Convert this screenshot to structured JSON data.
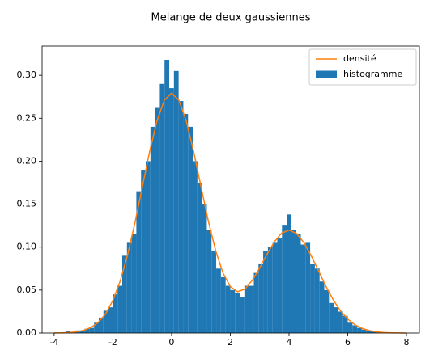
{
  "chart_data": {
    "type": "histogram",
    "title": "Melange de deux gaussiennes",
    "xlim": [
      -4.41,
      8.44
    ],
    "ylim": [
      0,
      0.334
    ],
    "xticks": [
      -4,
      -2,
      0,
      2,
      4,
      6,
      8
    ],
    "yticks": [
      {
        "value": 0,
        "label": "0.00"
      },
      {
        "value": 0.05,
        "label": "0.05"
      },
      {
        "value": 0.1,
        "label": "0.10"
      },
      {
        "value": 0.15,
        "label": "0.15"
      },
      {
        "value": 0.2,
        "label": "0.20"
      },
      {
        "value": 0.25,
        "label": "0.25"
      },
      {
        "value": 0.3,
        "label": "0.30"
      }
    ],
    "legend": "upper right",
    "series": [
      {
        "name": "densité",
        "type": "line",
        "color": "#ff7f0e",
        "x": [
          -4,
          -3.75,
          -3.5,
          -3.25,
          -3,
          -2.75,
          -2.5,
          -2.25,
          -2,
          -1.75,
          -1.5,
          -1.25,
          -1,
          -0.75,
          -0.5,
          -0.25,
          0,
          0.25,
          0.5,
          0.75,
          1,
          1.25,
          1.5,
          1.75,
          2,
          2.25,
          2.5,
          2.75,
          3,
          3.25,
          3.5,
          3.75,
          4,
          4.25,
          4.5,
          4.75,
          5,
          5.25,
          5.5,
          5.75,
          6,
          6.25,
          6.5,
          6.75,
          7,
          7.25,
          7.5,
          7.75,
          8
        ],
        "values": [
          0.0001,
          0.00025,
          0.0006,
          0.0014,
          0.0031,
          0.0064,
          0.0123,
          0.0222,
          0.0378,
          0.0604,
          0.0907,
          0.1278,
          0.1694,
          0.2108,
          0.2465,
          0.2707,
          0.2793,
          0.2708,
          0.2468,
          0.2114,
          0.1707,
          0.1305,
          0.096,
          0.0699,
          0.054,
          0.0481,
          0.0512,
          0.0613,
          0.0757,
          0.0917,
          0.1062,
          0.1163,
          0.1198,
          0.116,
          0.1056,
          0.0903,
          0.0726,
          0.0548,
          0.0389,
          0.0259,
          0.0162,
          0.0095,
          0.0053,
          0.0027,
          0.0013,
          0.0006,
          0.00026,
          0.0001,
          4e-05
        ]
      },
      {
        "name": "histogramme",
        "type": "histogram",
        "color": "#1f77b4",
        "bins": [
          -3.6,
          -3.44,
          -3.28,
          -3.12,
          -2.96,
          -2.8,
          -2.64,
          -2.48,
          -2.32,
          -2.16,
          -2,
          -1.84,
          -1.68,
          -1.52,
          -1.36,
          -1.2,
          -1.04,
          -0.88,
          -0.72,
          -0.56,
          -0.4,
          -0.24,
          -0.08,
          0.08,
          0.24,
          0.4,
          0.56,
          0.72,
          0.88,
          1.04,
          1.2,
          1.36,
          1.52,
          1.68,
          1.84,
          2,
          2.16,
          2.32,
          2.48,
          2.64,
          2.8,
          2.96,
          3.12,
          3.28,
          3.44,
          3.6,
          3.76,
          3.92,
          4.08,
          4.24,
          4.4,
          4.56,
          4.72,
          4.88,
          5.04,
          5.2,
          5.36,
          5.52,
          5.68,
          5.84,
          6,
          6.16,
          6.32,
          6.48,
          6.64,
          6.8,
          6.96,
          7.12,
          7.28,
          7.44,
          7.6
        ],
        "values": [
          0.002,
          0.001,
          0.003,
          0.002,
          0.005,
          0.006,
          0.012,
          0.018,
          0.026,
          0.03,
          0.045,
          0.055,
          0.09,
          0.105,
          0.115,
          0.165,
          0.19,
          0.2,
          0.24,
          0.262,
          0.29,
          0.318,
          0.285,
          0.305,
          0.27,
          0.255,
          0.24,
          0.2,
          0.175,
          0.15,
          0.12,
          0.095,
          0.075,
          0.065,
          0.055,
          0.05,
          0.047,
          0.042,
          0.055,
          0.055,
          0.07,
          0.08,
          0.095,
          0.1,
          0.105,
          0.11,
          0.125,
          0.138,
          0.12,
          0.115,
          0.103,
          0.105,
          0.08,
          0.075,
          0.06,
          0.05,
          0.035,
          0.03,
          0.025,
          0.02,
          0.012,
          0.009,
          0.006,
          0.004,
          0.003,
          0.002,
          0.001,
          0.001,
          0.0005,
          0.0003
        ]
      }
    ]
  }
}
